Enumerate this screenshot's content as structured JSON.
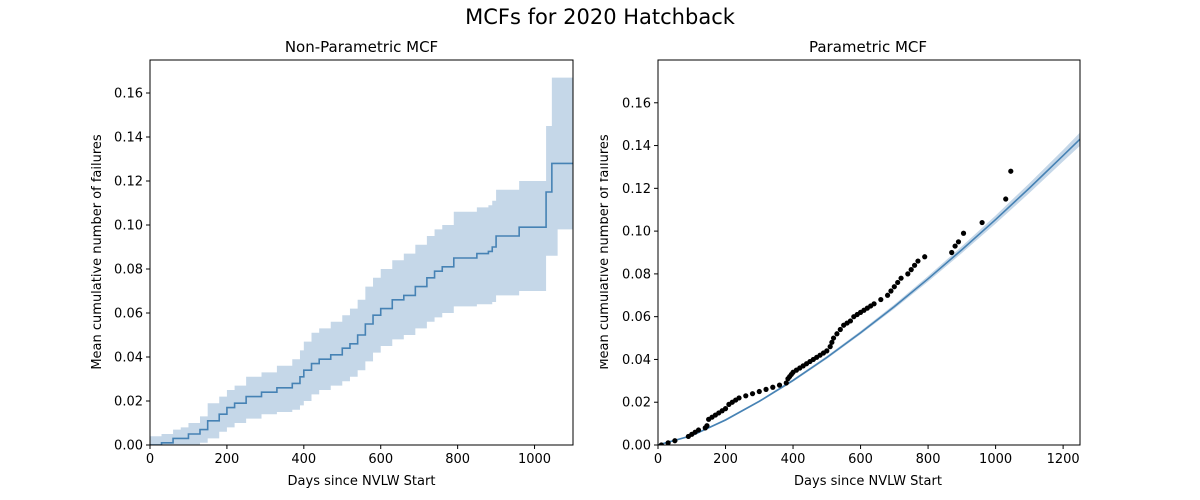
{
  "figure": {
    "title": "MCFs for 2020 Hatchback"
  },
  "colors": {
    "line": "#4682b4",
    "band": "#c5d7e8",
    "points": "#000000",
    "axes": "#000000"
  },
  "chart_data": [
    {
      "type": "line",
      "subplot": "left",
      "title": "Non-Parametric MCF",
      "xlabel": "Days since NVLW Start",
      "ylabel": "Mean cumulative number of failures",
      "xlim": [
        0,
        1100
      ],
      "ylim": [
        0,
        0.175
      ],
      "xticks": [
        "0",
        "200",
        "400",
        "600",
        "800",
        "1000"
      ],
      "yticks": [
        "0.00",
        "0.02",
        "0.04",
        "0.06",
        "0.08",
        "0.10",
        "0.12",
        "0.14",
        "0.16"
      ],
      "grid": false,
      "step": true,
      "series": [
        {
          "x": [
            0,
            30,
            60,
            80,
            100,
            130,
            150,
            180,
            200,
            220,
            250,
            290,
            330,
            370,
            390,
            400,
            420,
            440,
            470,
            500,
            520,
            540,
            560,
            580,
            600,
            630,
            660,
            690,
            720,
            740,
            760,
            790,
            850,
            880,
            890,
            900,
            960,
            1030,
            1045,
            1060,
            1100
          ],
          "y": [
            0.0,
            0.001,
            0.003,
            0.003,
            0.005,
            0.007,
            0.011,
            0.014,
            0.017,
            0.019,
            0.022,
            0.024,
            0.026,
            0.028,
            0.031,
            0.034,
            0.037,
            0.039,
            0.041,
            0.044,
            0.046,
            0.05,
            0.055,
            0.059,
            0.062,
            0.066,
            0.068,
            0.072,
            0.076,
            0.079,
            0.081,
            0.085,
            0.087,
            0.088,
            0.09,
            0.095,
            0.099,
            0.115,
            0.128,
            0.128,
            0.128
          ],
          "lower": [
            0.0,
            0.0,
            0.0,
            0.0,
            0.0,
            0.001,
            0.003,
            0.006,
            0.008,
            0.01,
            0.012,
            0.014,
            0.015,
            0.016,
            0.018,
            0.02,
            0.023,
            0.025,
            0.027,
            0.029,
            0.031,
            0.034,
            0.038,
            0.042,
            0.045,
            0.048,
            0.05,
            0.053,
            0.056,
            0.058,
            0.06,
            0.063,
            0.064,
            0.064,
            0.065,
            0.068,
            0.07,
            0.086,
            0.086,
            0.098,
            0.098
          ],
          "upper": [
            0.004,
            0.005,
            0.007,
            0.008,
            0.01,
            0.013,
            0.019,
            0.022,
            0.025,
            0.027,
            0.031,
            0.033,
            0.036,
            0.039,
            0.043,
            0.047,
            0.051,
            0.053,
            0.056,
            0.059,
            0.062,
            0.066,
            0.072,
            0.076,
            0.08,
            0.084,
            0.087,
            0.091,
            0.095,
            0.098,
            0.1,
            0.106,
            0.108,
            0.109,
            0.111,
            0.116,
            0.12,
            0.145,
            0.167,
            0.167,
            0.167
          ]
        }
      ]
    },
    {
      "type": "scatter",
      "subplot": "right",
      "title": "Parametric MCF",
      "xlabel": "Days since NVLW Start",
      "ylabel": "Mean cumulative number of failures",
      "xlim": [
        0,
        1250
      ],
      "ylim": [
        0,
        0.18
      ],
      "xticks": [
        "0",
        "200",
        "400",
        "600",
        "800",
        "1000",
        "1200"
      ],
      "yticks": [
        "0.00",
        "0.02",
        "0.04",
        "0.06",
        "0.08",
        "0.10",
        "0.12",
        "0.14",
        "0.16"
      ],
      "grid": false,
      "points": {
        "x": [
          10,
          30,
          50,
          90,
          100,
          110,
          120,
          140,
          145,
          150,
          160,
          170,
          180,
          190,
          200,
          210,
          220,
          230,
          240,
          260,
          280,
          300,
          320,
          340,
          360,
          380,
          385,
          390,
          395,
          400,
          410,
          420,
          430,
          440,
          450,
          460,
          470,
          480,
          490,
          500,
          510,
          515,
          520,
          530,
          540,
          550,
          560,
          570,
          580,
          590,
          600,
          610,
          620,
          630,
          640,
          660,
          680,
          690,
          700,
          710,
          720,
          740,
          750,
          760,
          770,
          790,
          870,
          880,
          890,
          905,
          960,
          1030,
          1045
        ],
        "y": [
          0.0,
          0.001,
          0.002,
          0.004,
          0.005,
          0.006,
          0.007,
          0.008,
          0.009,
          0.012,
          0.013,
          0.014,
          0.015,
          0.016,
          0.017,
          0.019,
          0.02,
          0.021,
          0.022,
          0.023,
          0.024,
          0.025,
          0.026,
          0.027,
          0.028,
          0.029,
          0.031,
          0.032,
          0.033,
          0.034,
          0.035,
          0.036,
          0.037,
          0.038,
          0.039,
          0.04,
          0.041,
          0.042,
          0.043,
          0.044,
          0.046,
          0.048,
          0.05,
          0.052,
          0.054,
          0.056,
          0.057,
          0.058,
          0.06,
          0.061,
          0.062,
          0.063,
          0.064,
          0.065,
          0.066,
          0.068,
          0.07,
          0.072,
          0.074,
          0.076,
          0.078,
          0.08,
          0.082,
          0.084,
          0.086,
          0.088,
          0.09,
          0.093,
          0.095,
          0.099,
          0.104,
          0.115,
          0.128
        ]
      },
      "fit": {
        "x": [
          0,
          100,
          200,
          300,
          400,
          500,
          600,
          700,
          800,
          900,
          1000,
          1100,
          1200,
          1250
        ],
        "y": [
          0.0,
          0.0044,
          0.0117,
          0.0204,
          0.0302,
          0.0409,
          0.0525,
          0.0647,
          0.0777,
          0.0913,
          0.1054,
          0.1201,
          0.1353,
          0.143
        ],
        "lower": [
          0.0,
          0.0041,
          0.0112,
          0.0199,
          0.0296,
          0.0402,
          0.0517,
          0.0637,
          0.0764,
          0.0897,
          0.1035,
          0.1178,
          0.1326,
          0.1399
        ],
        "upper": [
          0.0,
          0.0047,
          0.0122,
          0.0209,
          0.0308,
          0.0416,
          0.0533,
          0.0657,
          0.079,
          0.0929,
          0.1073,
          0.1224,
          0.138,
          0.1461
        ]
      }
    }
  ]
}
